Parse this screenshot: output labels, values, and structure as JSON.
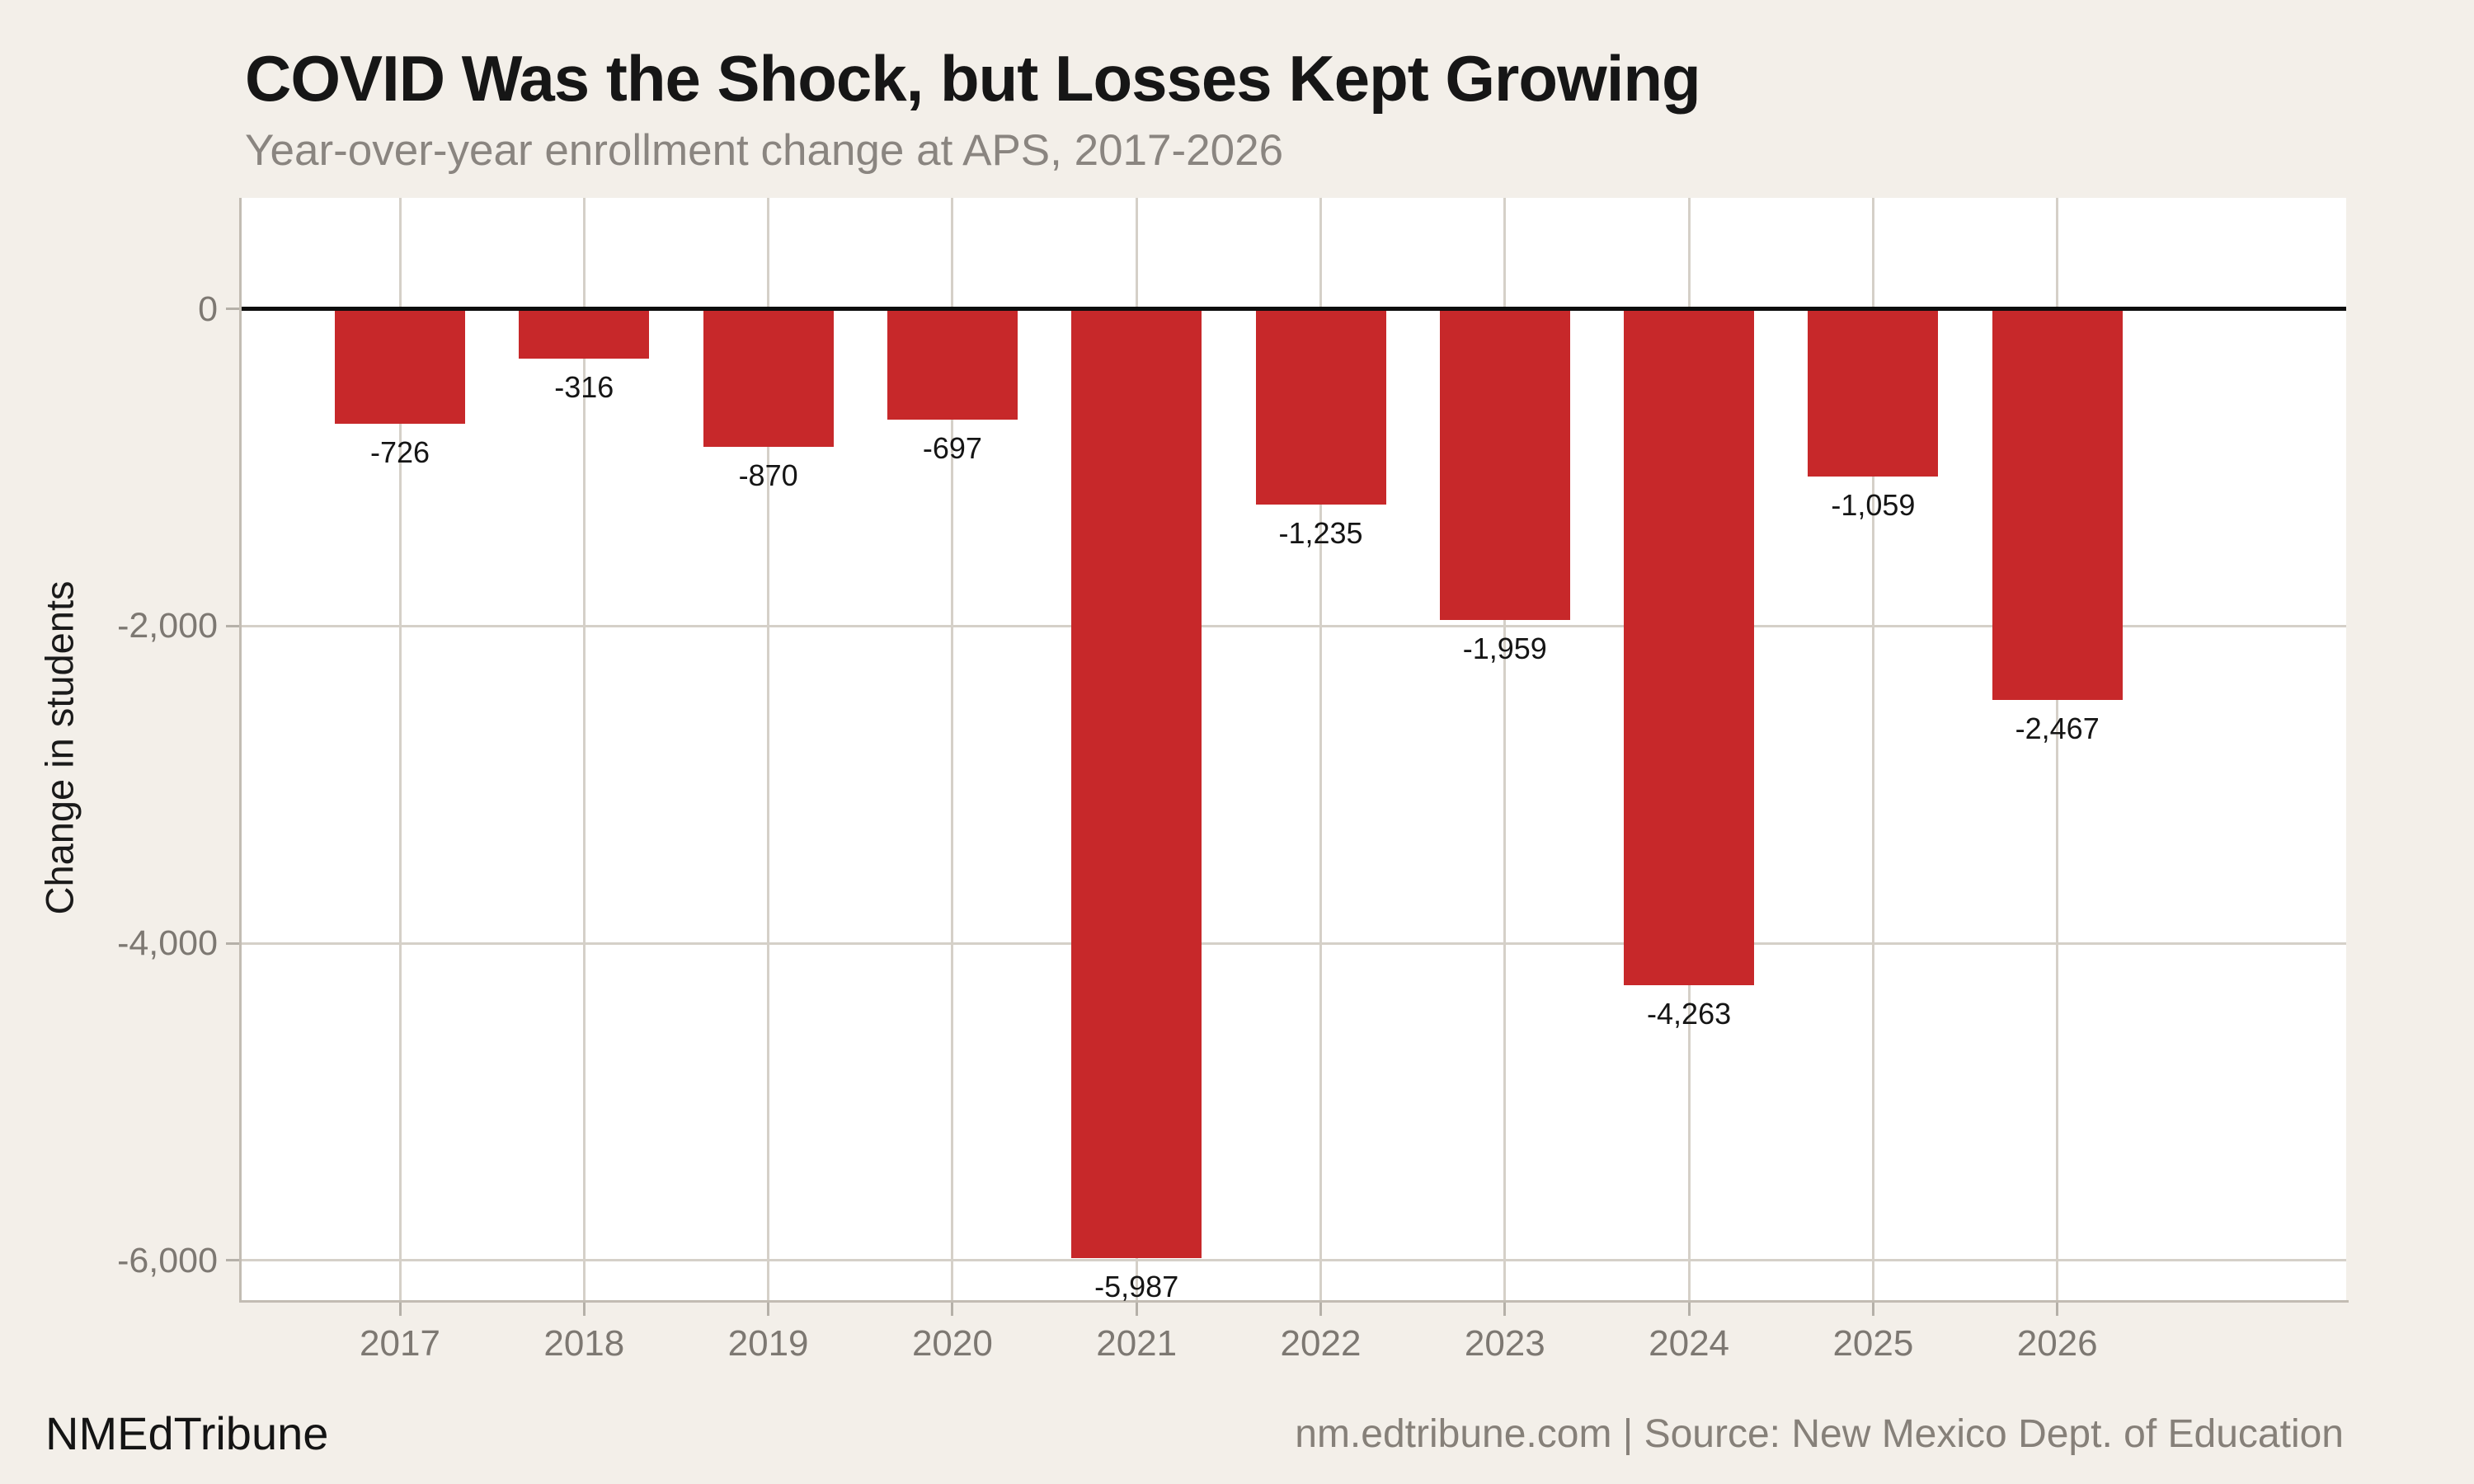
{
  "header": {
    "title": "COVID Was the Shock, but Losses Kept Growing",
    "subtitle": "Year-over-year enrollment change at APS, 2017-2026"
  },
  "footer": {
    "brand": "NMEdTribune",
    "attribution": "nm.edtribune.com | Source: New Mexico Dept. of Education"
  },
  "colors": {
    "page_background": "#f3efe9",
    "panel_background": "#ffffff",
    "bar": "#c7282a",
    "gridline": "#d5d0c8",
    "axis_line": "#c2bcb3",
    "zero_line": "#0d0d0d",
    "tick_text": "#7d7872",
    "title_text": "#161616",
    "subtitle_text": "#8a8580",
    "value_label_text": "#151515"
  },
  "chart_data": {
    "type": "bar",
    "title": "COVID Was the Shock, but Losses Kept Growing",
    "subtitle": "Year-over-year enrollment change at APS, 2017-2026",
    "categories": [
      "2017",
      "2018",
      "2019",
      "2020",
      "2021",
      "2022",
      "2023",
      "2024",
      "2025",
      "2026"
    ],
    "values": [
      -726,
      -316,
      -870,
      -697,
      -5987,
      -1235,
      -1959,
      -4263,
      -1059,
      -2467
    ],
    "value_labels": [
      "-726",
      "-316",
      "-870",
      "-697",
      "-5,987",
      "-1,235",
      "-1,959",
      "-4,263",
      "-1,059",
      "-2,467"
    ],
    "xlabel": "",
    "ylabel": "Change in students",
    "yticks": [
      0,
      -2000,
      -4000,
      -6000
    ],
    "ytick_labels": [
      "0",
      "-2,000",
      "-4,000",
      "-6,000"
    ],
    "ylim": [
      700,
      -6250
    ],
    "grid": true,
    "legend": false,
    "bar_color": "#c7282a",
    "zero_baseline": true
  }
}
